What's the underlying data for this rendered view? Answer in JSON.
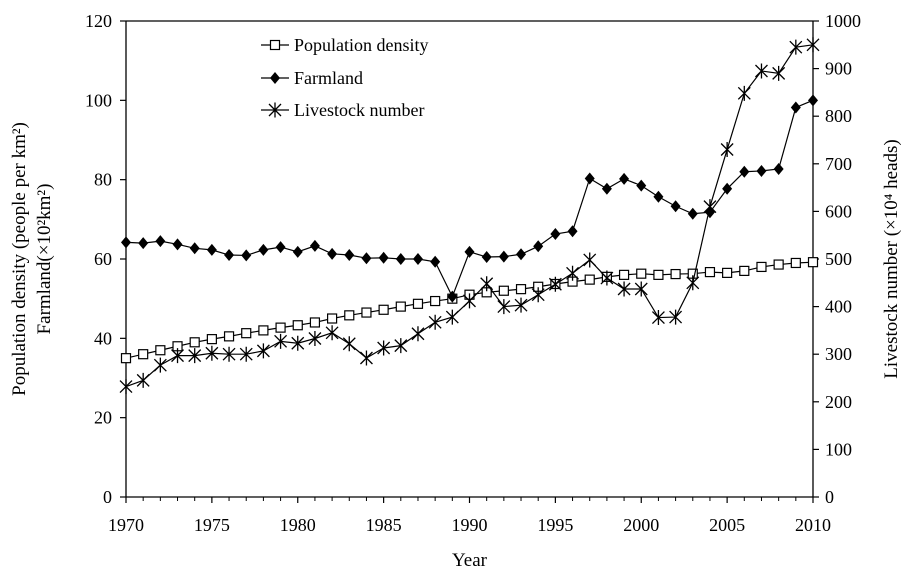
{
  "chart_data": {
    "type": "line",
    "title": "",
    "xlabel": "Year",
    "ylabel_left_line1": "Population density (people per km²)",
    "ylabel_left_line2": "Farmland(×10²km²)",
    "ylabel_right": "Livestock number (×10⁴ heads)",
    "xlim": [
      1970,
      2010
    ],
    "ylim_left": [
      0,
      120
    ],
    "ylim_right": [
      0,
      1000
    ],
    "x_ticks": [
      1970,
      1975,
      1980,
      1985,
      1990,
      1995,
      2000,
      2005,
      2010
    ],
    "y_ticks_left": [
      0,
      20,
      40,
      60,
      80,
      100,
      120
    ],
    "y_ticks_right": [
      0,
      100,
      200,
      300,
      400,
      500,
      600,
      700,
      800,
      900,
      1000
    ],
    "grid": false,
    "legend_position": "top-center",
    "x": [
      1970,
      1971,
      1972,
      1973,
      1974,
      1975,
      1976,
      1977,
      1978,
      1979,
      1980,
      1981,
      1982,
      1983,
      1984,
      1985,
      1986,
      1987,
      1988,
      1989,
      1990,
      1991,
      1992,
      1993,
      1994,
      1995,
      1996,
      1997,
      1998,
      1999,
      2000,
      2001,
      2002,
      2003,
      2004,
      2005,
      2006,
      2007,
      2008,
      2009,
      2010
    ],
    "series": [
      {
        "name": "Population density",
        "axis": "left",
        "marker": "open-square",
        "values": [
          35.0,
          36.0,
          37.0,
          38.0,
          39.0,
          39.8,
          40.5,
          41.3,
          42.0,
          42.7,
          43.3,
          44.0,
          45.0,
          45.8,
          46.5,
          47.2,
          48.0,
          48.7,
          49.4,
          50.0,
          51.0,
          51.6,
          52.0,
          52.4,
          53.0,
          53.7,
          54.3,
          54.8,
          55.5,
          56.0,
          56.3,
          56.0,
          56.2,
          56.3,
          56.7,
          56.5,
          57.0,
          58.0,
          58.6,
          59.0,
          59.2
        ]
      },
      {
        "name": "Farmland",
        "axis": "left",
        "marker": "filled-diamond",
        "values": [
          64.2,
          64.0,
          64.5,
          63.7,
          62.7,
          62.3,
          61.0,
          60.9,
          62.3,
          63.0,
          61.8,
          63.3,
          61.3,
          61.0,
          60.2,
          60.3,
          60.0,
          60.0,
          59.3,
          50.5,
          61.8,
          60.5,
          60.6,
          61.2,
          63.2,
          66.3,
          67.0,
          80.3,
          77.7,
          80.2,
          78.5,
          75.7,
          73.3,
          71.4,
          71.8,
          77.7,
          82.0,
          82.2,
          82.7,
          98.2,
          100.0
        ]
      },
      {
        "name": "Livestock number",
        "axis": "right",
        "marker": "asterisk",
        "values": [
          232,
          245,
          277,
          297,
          297,
          302,
          300,
          300,
          307,
          327,
          323,
          333,
          345,
          322,
          292,
          313,
          318,
          343,
          367,
          378,
          412,
          448,
          400,
          403,
          425,
          447,
          470,
          498,
          460,
          437,
          437,
          377,
          378,
          450,
          610,
          730,
          848,
          895,
          890,
          945,
          950
        ]
      }
    ]
  }
}
